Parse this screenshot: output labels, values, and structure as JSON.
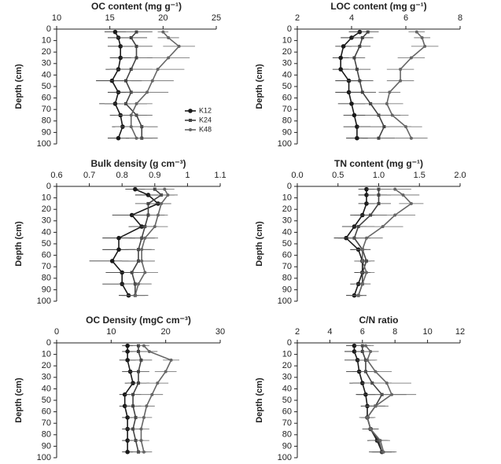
{
  "chart_data": [
    {
      "type": "line",
      "title": "OC content (mg g⁻¹)",
      "y_label": "Depth (cm)",
      "y": [
        2.5,
        7.5,
        15,
        25,
        35,
        45,
        55,
        65,
        75,
        85,
        95
      ],
      "xlim": [
        10,
        25
      ],
      "xticks": [
        10,
        15,
        20,
        25
      ],
      "ylim": [
        0,
        100
      ],
      "yticks": [
        0,
        10,
        20,
        30,
        40,
        50,
        60,
        70,
        80,
        90,
        100
      ],
      "legend": "lower right",
      "series": [
        {
          "name": "K12",
          "color": "#1a1a1a",
          "values": [
            15.5,
            15.8,
            16,
            16,
            15.8,
            15.2,
            15.8,
            15.5,
            16,
            16.2,
            15.8
          ],
          "errors": [
            1,
            1,
            1.2,
            1,
            1.2,
            1.5,
            1,
            1.5,
            1,
            1,
            1
          ]
        },
        {
          "name": "K24",
          "color": "#444444",
          "values": [
            17.5,
            17,
            17.5,
            17.5,
            17,
            16.5,
            17,
            16.5,
            17.5,
            18,
            18
          ],
          "errors": [
            1.5,
            1.5,
            1.5,
            1.5,
            2,
            1.5,
            1.5,
            2,
            1.5,
            1.5,
            1.5
          ]
        },
        {
          "name": "K48",
          "color": "#666666",
          "values": [
            20,
            20.5,
            21.5,
            20.5,
            19.5,
            19,
            18.5,
            17.5,
            17,
            17,
            17.5
          ],
          "errors": [
            0.5,
            1,
            1.5,
            2,
            2.5,
            2,
            2,
            1.5,
            1.5,
            1.5,
            1.5
          ]
        }
      ]
    },
    {
      "type": "line",
      "title": "LOC content (mg g⁻¹)",
      "y_label": "Depth (cm)",
      "y": [
        2.5,
        7.5,
        15,
        25,
        35,
        45,
        55,
        65,
        75,
        85,
        95
      ],
      "xlim": [
        2,
        8
      ],
      "xticks": [
        2,
        4,
        6,
        8
      ],
      "ylim": [
        0,
        100
      ],
      "yticks": [
        0,
        10,
        20,
        30,
        40,
        50,
        60,
        70,
        80,
        90,
        100
      ],
      "series": [
        {
          "color": "#1a1a1a",
          "values": [
            4.3,
            4,
            3.7,
            3.6,
            3.6,
            3.9,
            3.9,
            4,
            4.1,
            4.2,
            4.2
          ],
          "errors": [
            0.4,
            0.4,
            0.3,
            0.3,
            0.3,
            0.5,
            0.5,
            0.5,
            0.4,
            0.5,
            0.4
          ]
        },
        {
          "color": "#444444",
          "values": [
            4.6,
            4.4,
            4.3,
            4.1,
            4.2,
            4.3,
            4.4,
            4.7,
            5,
            5.2,
            5
          ],
          "errors": [
            0.4,
            0.4,
            0.4,
            0.4,
            0.5,
            0.5,
            0.5,
            0.6,
            0.8,
            1,
            0.6
          ]
        },
        {
          "color": "#666666",
          "values": [
            6.4,
            6.6,
            6.7,
            6.2,
            5.8,
            5.8,
            5.4,
            5.3,
            5.5,
            6,
            6.2
          ],
          "errors": [
            0.3,
            0.3,
            0.5,
            0.5,
            0.5,
            0.5,
            0.4,
            0.6,
            0.6,
            0.6,
            0.6
          ]
        }
      ]
    },
    {
      "type": "line",
      "title": "Bulk density (g cm⁻³)",
      "y_label": "Depth (cm)",
      "y": [
        2.5,
        7.5,
        15,
        25,
        35,
        45,
        55,
        65,
        75,
        85,
        95
      ],
      "xlim": [
        0.6,
        1.1
      ],
      "xticks": [
        0.6,
        0.7,
        0.8,
        0.9,
        1,
        1.1
      ],
      "ylim": [
        0,
        100
      ],
      "yticks": [
        0,
        10,
        20,
        30,
        40,
        50,
        60,
        70,
        80,
        90,
        100
      ],
      "series": [
        {
          "color": "#1a1a1a",
          "values": [
            0.84,
            0.88,
            0.91,
            0.83,
            0.86,
            0.79,
            0.79,
            0.77,
            0.8,
            0.8,
            0.82
          ],
          "errors": [
            0.03,
            0.04,
            0.04,
            0.06,
            0.04,
            0.05,
            0.05,
            0.07,
            0.05,
            0.06,
            0.03
          ]
        },
        {
          "color": "#444444",
          "values": [
            0.9,
            0.92,
            0.88,
            0.88,
            0.87,
            0.86,
            0.85,
            0.85,
            0.83,
            0.84,
            0.84
          ],
          "errors": [
            0.04,
            0.04,
            0.04,
            0.05,
            0.04,
            0.04,
            0.04,
            0.05,
            0.04,
            0.05,
            0.04
          ]
        },
        {
          "color": "#666666",
          "values": [
            0.93,
            0.94,
            0.92,
            0.91,
            0.9,
            0.87,
            0.86,
            0.86,
            0.87,
            0.85,
            0.84
          ],
          "errors": [
            0.03,
            0.03,
            0.03,
            0.03,
            0.04,
            0.04,
            0.04,
            0.04,
            0.04,
            0.04,
            0.03
          ]
        }
      ]
    },
    {
      "type": "line",
      "title": "TN content (mg g⁻¹)",
      "y_label": "Depth (cm)",
      "y": [
        2.5,
        7.5,
        15,
        25,
        35,
        45,
        55,
        65,
        75,
        85,
        95
      ],
      "xlim": [
        0,
        2
      ],
      "xticks": [
        {
          "value": 0,
          "label": "0.0"
        },
        {
          "value": 0.5,
          "label": "0.5"
        },
        {
          "value": 1,
          "label": "1.0"
        },
        {
          "value": 1.5,
          "label": "1.5"
        },
        {
          "value": 2,
          "label": "2.0"
        }
      ],
      "ylim": [
        0,
        100
      ],
      "yticks": [
        0,
        10,
        20,
        30,
        40,
        50,
        60,
        70,
        80,
        90,
        100
      ],
      "series": [
        {
          "color": "#1a1a1a",
          "values": [
            0.85,
            0.85,
            0.85,
            0.8,
            0.7,
            0.6,
            0.75,
            0.8,
            0.8,
            0.75,
            0.7
          ],
          "errors": [
            0.1,
            0.1,
            0.1,
            0.15,
            0.15,
            0.15,
            0.1,
            0.1,
            0.1,
            0.1,
            0.1
          ]
        },
        {
          "color": "#444444",
          "values": [
            1,
            1,
            1,
            0.9,
            0.75,
            0.7,
            0.8,
            0.85,
            0.8,
            0.8,
            0.75
          ],
          "errors": [
            0.15,
            0.15,
            0.15,
            0.2,
            0.2,
            0.2,
            0.1,
            0.1,
            0.1,
            0.1,
            0.1
          ]
        },
        {
          "color": "#666666",
          "values": [
            1.2,
            1.3,
            1.4,
            1.2,
            1.05,
            0.85,
            0.8,
            0.8,
            0.85,
            0.8,
            0.75
          ],
          "errors": [
            0.2,
            0.2,
            0.15,
            0.25,
            0.25,
            0.2,
            0.1,
            0.1,
            0.1,
            0.1,
            0.1
          ]
        }
      ]
    },
    {
      "type": "line",
      "title": "OC Density (mgC cm⁻³)",
      "y_label": "Depth (cm)",
      "y": [
        2.5,
        7.5,
        15,
        25,
        35,
        45,
        55,
        65,
        75,
        85,
        95
      ],
      "xlim": [
        0,
        30
      ],
      "xticks": [
        0,
        10,
        20,
        30
      ],
      "ylim": [
        0,
        100
      ],
      "yticks": [
        0,
        10,
        20,
        30,
        40,
        50,
        60,
        70,
        80,
        90,
        100
      ],
      "series": [
        {
          "color": "#1a1a1a",
          "values": [
            13,
            13,
            13,
            13.5,
            14,
            12.5,
            12.5,
            13,
            13,
            13,
            13
          ],
          "errors": [
            1,
            1,
            1.5,
            1.5,
            1.5,
            1,
            1,
            1,
            1,
            1,
            1
          ]
        },
        {
          "color": "#444444",
          "values": [
            15,
            15,
            15.5,
            15,
            15,
            14,
            14,
            14.5,
            14,
            14.5,
            15
          ],
          "errors": [
            1.5,
            1.5,
            2,
            2,
            2,
            1.5,
            1.5,
            1.5,
            1.5,
            1.5,
            1.5
          ]
        },
        {
          "color": "#666666",
          "values": [
            16,
            17,
            21,
            20,
            18.5,
            17.5,
            16.5,
            16,
            15.5,
            15.5,
            16
          ],
          "errors": [
            1,
            1.5,
            1.5,
            2,
            2,
            2,
            1.5,
            1.5,
            1.5,
            1.5,
            1.5
          ]
        }
      ]
    },
    {
      "type": "line",
      "title": "C/N ratio",
      "y_label": "Depth (cm)",
      "y": [
        2.5,
        7.5,
        15,
        25,
        35,
        45,
        55,
        65,
        75,
        85,
        95
      ],
      "xlim": [
        2,
        12
      ],
      "xticks": [
        2,
        4,
        6,
        8,
        10,
        12
      ],
      "ylim": [
        0,
        100
      ],
      "yticks": [
        0,
        10,
        20,
        30,
        40,
        50,
        60,
        70,
        80,
        90,
        100
      ],
      "series": [
        {
          "color": "#1a1a1a",
          "values": [
            5.5,
            5.5,
            5.7,
            5.8,
            6,
            6.2,
            6.3,
            6.3,
            6.5,
            6.9,
            7.2
          ],
          "errors": [
            0.5,
            0.6,
            0.8,
            0.8,
            0.8,
            0.6,
            0.4,
            0.4,
            0.5,
            0.6,
            0.6
          ]
        },
        {
          "color": "#444444",
          "values": [
            6,
            6,
            6.2,
            6.2,
            6.6,
            7.2,
            6.8,
            6.3,
            6.5,
            7,
            7.2
          ],
          "errors": [
            0.5,
            0.5,
            0.6,
            0.8,
            1.2,
            1.5,
            0.6,
            0.4,
            0.5,
            0.6,
            0.8
          ]
        },
        {
          "color": "#666666",
          "values": [
            6.2,
            6.5,
            6.3,
            6.8,
            7.5,
            7.8,
            6.8,
            6.3,
            6.5,
            7.1,
            7.3
          ],
          "errors": [
            0.5,
            0.5,
            0.6,
            1,
            1.5,
            1.5,
            0.8,
            0.5,
            0.5,
            0.6,
            0.8
          ]
        }
      ]
    }
  ]
}
